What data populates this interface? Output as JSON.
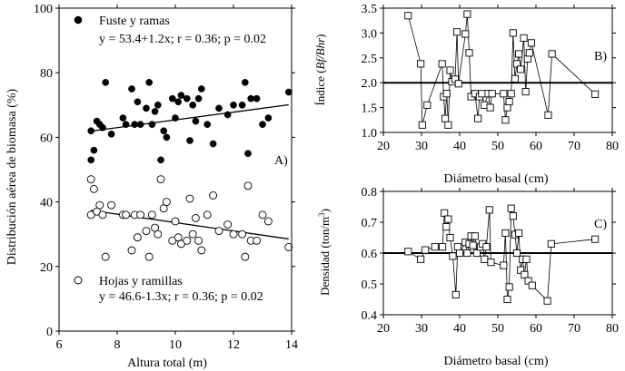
{
  "chart_data": [
    {
      "type": "scatter",
      "panel": "A)",
      "xlabel": "Altura total (m)",
      "ylabel": "Distribución aérea de biomasa (%)",
      "xlim": [
        6,
        14
      ],
      "ylim": [
        0,
        100
      ],
      "xticks": [
        6,
        8,
        10,
        12,
        14
      ],
      "yticks": [
        0,
        20,
        40,
        60,
        80,
        100
      ],
      "series": [
        {
          "name": "Fuste y ramas",
          "marker": "filled-circle",
          "legend_label": "Fuste y ramas",
          "equation": "y = 53.4+1.2x; r = 0.36; p = 0.02",
          "fit": {
            "intercept": 53.4,
            "slope": 1.2,
            "x_range": [
              7.1,
              13.9
            ]
          },
          "points": [
            [
              7.1,
              62
            ],
            [
              7.1,
              53
            ],
            [
              7.2,
              56
            ],
            [
              7.3,
              65
            ],
            [
              7.4,
              64
            ],
            [
              7.5,
              63
            ],
            [
              7.6,
              77
            ],
            [
              7.8,
              61
            ],
            [
              8.2,
              66
            ],
            [
              8.3,
              64
            ],
            [
              8.5,
              75
            ],
            [
              8.6,
              64
            ],
            [
              8.7,
              71
            ],
            [
              8.8,
              64
            ],
            [
              9.0,
              69
            ],
            [
              9.1,
              77
            ],
            [
              9.2,
              64
            ],
            [
              9.3,
              68
            ],
            [
              9.4,
              70
            ],
            [
              9.5,
              53
            ],
            [
              9.6,
              62
            ],
            [
              9.7,
              60
            ],
            [
              9.9,
              72
            ],
            [
              10.0,
              66
            ],
            [
              10.1,
              71
            ],
            [
              10.2,
              73
            ],
            [
              10.4,
              72
            ],
            [
              10.5,
              59
            ],
            [
              10.6,
              70
            ],
            [
              10.7,
              65
            ],
            [
              10.8,
              72
            ],
            [
              10.9,
              75
            ],
            [
              11.1,
              64
            ],
            [
              11.3,
              58
            ],
            [
              11.5,
              69
            ],
            [
              11.8,
              67
            ],
            [
              12.0,
              70
            ],
            [
              12.3,
              70
            ],
            [
              12.4,
              77
            ],
            [
              12.5,
              55
            ],
            [
              12.6,
              72
            ],
            [
              12.8,
              72
            ],
            [
              13.0,
              64
            ],
            [
              13.2,
              66
            ],
            [
              13.9,
              74
            ]
          ]
        },
        {
          "name": "Hojas y ramillas",
          "marker": "open-circle",
          "legend_label": "Hojas y ramillas",
          "equation": "y = 46.6-1.3x; r = 0.36; p = 0.02",
          "fit": {
            "intercept": 46.6,
            "slope": -1.3,
            "x_range": [
              7.1,
              13.9
            ]
          },
          "points": [
            [
              7.1,
              36
            ],
            [
              7.1,
              47
            ],
            [
              7.2,
              44
            ],
            [
              7.3,
              37
            ],
            [
              7.4,
              39
            ],
            [
              7.5,
              36
            ],
            [
              7.6,
              23
            ],
            [
              7.8,
              39
            ],
            [
              8.2,
              36
            ],
            [
              8.3,
              36
            ],
            [
              8.5,
              25
            ],
            [
              8.6,
              36
            ],
            [
              8.7,
              29
            ],
            [
              8.8,
              36
            ],
            [
              9.0,
              31
            ],
            [
              9.1,
              23
            ],
            [
              9.2,
              36
            ],
            [
              9.3,
              32
            ],
            [
              9.4,
              30
            ],
            [
              9.5,
              47
            ],
            [
              9.6,
              38
            ],
            [
              9.7,
              40
            ],
            [
              9.9,
              28
            ],
            [
              10.0,
              34
            ],
            [
              10.1,
              29
            ],
            [
              10.2,
              27
            ],
            [
              10.4,
              28
            ],
            [
              10.5,
              41
            ],
            [
              10.6,
              30
            ],
            [
              10.7,
              35
            ],
            [
              10.8,
              28
            ],
            [
              10.9,
              25
            ],
            [
              11.1,
              36
            ],
            [
              11.3,
              42
            ],
            [
              11.5,
              31
            ],
            [
              11.8,
              33
            ],
            [
              12.0,
              30
            ],
            [
              12.3,
              30
            ],
            [
              12.4,
              23
            ],
            [
              12.5,
              45
            ],
            [
              12.6,
              28
            ],
            [
              12.8,
              28
            ],
            [
              13.0,
              36
            ],
            [
              13.2,
              34
            ],
            [
              13.9,
              26
            ]
          ]
        }
      ]
    },
    {
      "type": "line",
      "panel": "B)",
      "xlabel": "Diámetro basal (cm)",
      "ylabel": "Índice (Bf/Bhr)",
      "ylabel_prefix": "Índice (",
      "ylabel_italic": "Bf/Bhr",
      "ylabel_suffix": ")",
      "xlim": [
        20,
        80
      ],
      "ylim": [
        1.0,
        3.5
      ],
      "xticks": [
        20,
        30,
        40,
        50,
        60,
        70,
        80
      ],
      "yticks": [
        1.0,
        1.5,
        2.0,
        2.5,
        3.0,
        3.5
      ],
      "reference_line": 2.0,
      "marker": "open-square",
      "points": [
        [
          26.5,
          3.35
        ],
        [
          29.8,
          2.38
        ],
        [
          30.2,
          1.15
        ],
        [
          31.5,
          1.55
        ],
        [
          35.4,
          2.38
        ],
        [
          35.8,
          1.72
        ],
        [
          36.2,
          1.28
        ],
        [
          36.6,
          1.78
        ],
        [
          37.0,
          1.15
        ],
        [
          37.5,
          2.25
        ],
        [
          38.0,
          2.02
        ],
        [
          38.8,
          2.07
        ],
        [
          39.3,
          3.02
        ],
        [
          39.7,
          1.98
        ],
        [
          41.5,
          2.98
        ],
        [
          42.0,
          3.38
        ],
        [
          42.5,
          2.6
        ],
        [
          43.0,
          1.72
        ],
        [
          44.0,
          1.78
        ],
        [
          44.8,
          1.28
        ],
        [
          45.2,
          1.72
        ],
        [
          45.8,
          1.78
        ],
        [
          46.5,
          1.55
        ],
        [
          47.5,
          1.78
        ],
        [
          48.0,
          1.5
        ],
        [
          48.5,
          1.78
        ],
        [
          51.5,
          1.78
        ],
        [
          52.0,
          1.25
        ],
        [
          52.5,
          1.5
        ],
        [
          53.0,
          1.62
        ],
        [
          53.5,
          1.78
        ],
        [
          54.0,
          3.0
        ],
        [
          54.5,
          2.08
        ],
        [
          55.0,
          2.38
        ],
        [
          55.5,
          2.58
        ],
        [
          56.0,
          2.27
        ],
        [
          56.8,
          2.9
        ],
        [
          57.3,
          1.82
        ],
        [
          57.8,
          2.48
        ],
        [
          58.3,
          2.6
        ],
        [
          58.8,
          2.8
        ],
        [
          63.2,
          1.35
        ],
        [
          64.2,
          2.58
        ],
        [
          75.5,
          1.77
        ]
      ]
    },
    {
      "type": "line",
      "panel": "C)",
      "xlabel": "Diámetro basal (cm)",
      "ylabel": "Densidad (ton/m3)",
      "ylabel_main": "Densidad (ton/m",
      "ylabel_sup": "3",
      "ylabel_close": ")",
      "xlim": [
        20,
        80
      ],
      "ylim": [
        0.4,
        0.8
      ],
      "xticks": [
        20,
        30,
        40,
        50,
        60,
        70,
        80
      ],
      "xtick_labels": [
        "20",
        "30",
        "40",
        "50",
        "60",
        "70",
        "80"
      ],
      "yticks": [
        0.4,
        0.5,
        0.6,
        0.7,
        0.8
      ],
      "reference_line": 0.6,
      "marker": "open-square",
      "points": [
        [
          26.5,
          0.605
        ],
        [
          29.8,
          0.58
        ],
        [
          31.0,
          0.61
        ],
        [
          33.5,
          0.62
        ],
        [
          35.5,
          0.62
        ],
        [
          36.0,
          0.73
        ],
        [
          36.5,
          0.685
        ],
        [
          37.0,
          0.71
        ],
        [
          37.5,
          0.65
        ],
        [
          38.2,
          0.59
        ],
        [
          39.0,
          0.465
        ],
        [
          39.5,
          0.62
        ],
        [
          40.0,
          0.6
        ],
        [
          41.5,
          0.635
        ],
        [
          42.0,
          0.6
        ],
        [
          42.5,
          0.63
        ],
        [
          43.0,
          0.655
        ],
        [
          43.5,
          0.625
        ],
        [
          44.0,
          0.655
        ],
        [
          44.5,
          0.6
        ],
        [
          45.5,
          0.62
        ],
        [
          46.0,
          0.63
        ],
        [
          46.5,
          0.58
        ],
        [
          47.0,
          0.62
        ],
        [
          47.8,
          0.74
        ],
        [
          48.2,
          0.57
        ],
        [
          51.5,
          0.56
        ],
        [
          52.0,
          0.665
        ],
        [
          52.5,
          0.45
        ],
        [
          53.0,
          0.49
        ],
        [
          53.5,
          0.745
        ],
        [
          54.0,
          0.72
        ],
        [
          54.5,
          0.66
        ],
        [
          55.0,
          0.6
        ],
        [
          55.5,
          0.665
        ],
        [
          56.0,
          0.545
        ],
        [
          56.5,
          0.58
        ],
        [
          57.0,
          0.53
        ],
        [
          57.5,
          0.58
        ],
        [
          58.0,
          0.51
        ],
        [
          59.0,
          0.495
        ],
        [
          63.0,
          0.445
        ],
        [
          64.0,
          0.63
        ],
        [
          75.5,
          0.645
        ]
      ]
    }
  ]
}
